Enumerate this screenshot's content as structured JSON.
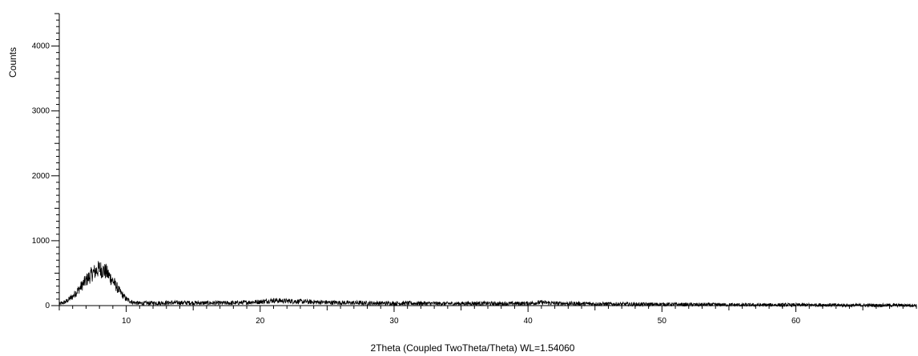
{
  "chart_data": {
    "type": "line",
    "title": "",
    "xlabel": "2Theta (Coupled TwoTheta/Theta) WL=1.54060",
    "ylabel": "Counts",
    "xlim": [
      5,
      69
    ],
    "ylim": [
      0,
      4500
    ],
    "x_ticks": [
      10,
      20,
      30,
      40,
      50,
      60
    ],
    "x_tick_labels": [
      "10",
      "20",
      "30",
      "40",
      "50",
      "60"
    ],
    "y_ticks": [
      0,
      1000,
      2000,
      3000,
      4000
    ],
    "y_tick_labels": [
      "0",
      "1000",
      "2000",
      "3000",
      "4000"
    ],
    "grid": false,
    "legend": "none",
    "line_color": "#000000",
    "series": [
      {
        "x": [
          5.0,
          5.5,
          6.0,
          6.5,
          7.0,
          7.5,
          8.0,
          8.5,
          9.0,
          9.5,
          10.0,
          10.5,
          11.0,
          12.0,
          14.0,
          16.0,
          18.0,
          20.0,
          21.0,
          22.0,
          24.0,
          26.0,
          28.0,
          30.0,
          32.0,
          34.0,
          36.0,
          38.0,
          40.0,
          41.0,
          42.0,
          44.0,
          46.0,
          48.0,
          50.0,
          52.0,
          54.0,
          56.0,
          58.0,
          60.0,
          62.0,
          64.0,
          66.0,
          69.0
        ],
        "y": [
          20,
          60,
          140,
          260,
          390,
          500,
          570,
          520,
          380,
          220,
          100,
          50,
          35,
          40,
          45,
          40,
          40,
          60,
          80,
          70,
          55,
          45,
          40,
          35,
          35,
          30,
          35,
          30,
          35,
          50,
          35,
          30,
          25,
          20,
          20,
          15,
          15,
          10,
          10,
          10,
          10,
          5,
          5,
          5
        ]
      }
    ]
  }
}
